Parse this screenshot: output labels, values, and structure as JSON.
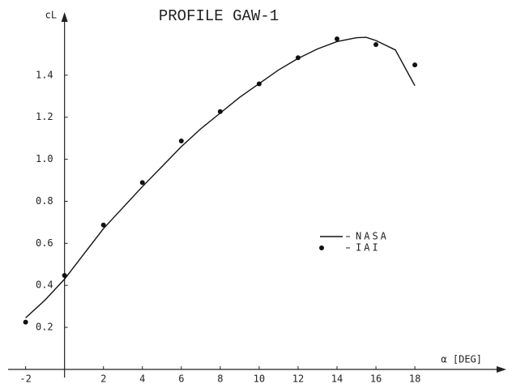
{
  "chart_data": {
    "type": "line",
    "title": "PROFILE GAW-1",
    "xlabel": "α [DEG]",
    "ylabel": "cL",
    "xlim": [
      -2.9,
      22.7
    ],
    "ylim": [
      0,
      1.7
    ],
    "xticks": [
      -2,
      2,
      4,
      6,
      8,
      10,
      12,
      14,
      16,
      18
    ],
    "yticks": [
      0.2,
      0.4,
      0.6,
      0.8,
      {
        "value": 1,
        "label": "1.0"
      },
      1.2,
      1.4
    ],
    "legend": "center-right",
    "series": [
      {
        "name": "NASA",
        "color": "#111111",
        "style": "line",
        "x": [
          -2,
          -1,
          0,
          1,
          2,
          3,
          4,
          5,
          6,
          7,
          8,
          9,
          10,
          11,
          12,
          13,
          14,
          15,
          15.5,
          16,
          17,
          18
        ],
        "values": [
          0.245,
          0.33,
          0.43,
          0.55,
          0.67,
          0.77,
          0.87,
          0.965,
          1.06,
          1.145,
          1.22,
          1.295,
          1.36,
          1.425,
          1.48,
          1.525,
          1.56,
          1.578,
          1.58,
          1.565,
          1.52,
          1.35
        ]
      },
      {
        "name": "IAI",
        "color": "#111111",
        "style": "points",
        "x": [
          -2,
          0,
          2,
          4,
          6,
          8,
          10,
          12,
          14,
          16,
          18
        ],
        "values": [
          0.225,
          0.447,
          0.687,
          0.889,
          1.087,
          1.227,
          1.359,
          1.483,
          1.573,
          1.546,
          1.449
        ]
      }
    ]
  }
}
